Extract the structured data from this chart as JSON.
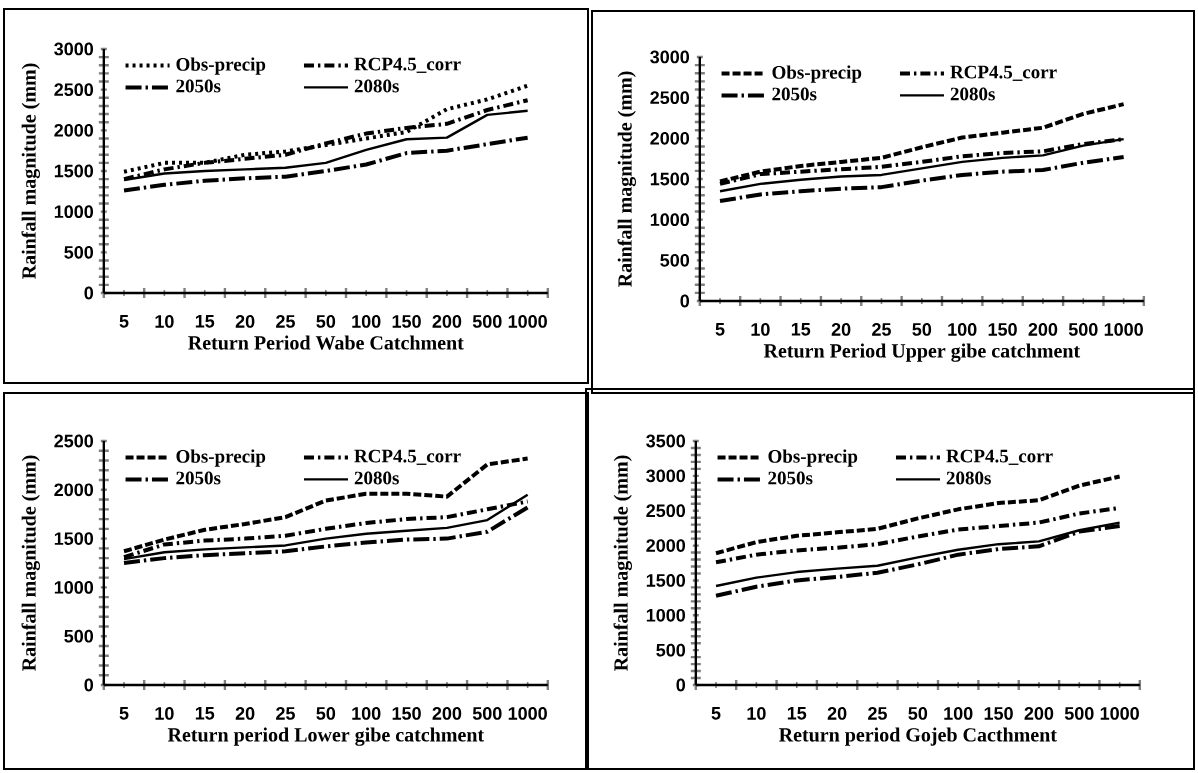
{
  "chart_data": [
    {
      "type": "line",
      "categories": [
        "5",
        "10",
        "15",
        "20",
        "25",
        "50",
        "100",
        "150",
        "200",
        "500",
        "1000"
      ],
      "xlabel": "Return Period Wabe  Catchment",
      "ylabel": "Rainfall magnitude (mm)",
      "ylim": [
        0,
        3000
      ],
      "yticks": [
        0,
        500,
        1000,
        1500,
        2000,
        2500,
        3000
      ],
      "legend": "top left",
      "grid": false,
      "series": [
        {
          "name": "Obs-precip",
          "color": "#000000",
          "line_style": "dotted",
          "values": [
            1490,
            1600,
            1600,
            1700,
            1740,
            1820,
            1900,
            1980,
            2260,
            2380,
            2550
          ]
        },
        {
          "name": "RCP4.5_corr",
          "color": "#000000",
          "line_style": "dashed",
          "values": [
            1400,
            1520,
            1600,
            1650,
            1700,
            1840,
            1960,
            2030,
            2080,
            2250,
            2370
          ]
        },
        {
          "name": "2050s",
          "color": "#000000",
          "line_style": "dashed",
          "values": [
            1260,
            1330,
            1380,
            1410,
            1430,
            1500,
            1580,
            1720,
            1750,
            1830,
            1910
          ]
        },
        {
          "name": "2080s",
          "color": "#000000",
          "line_style": "solid",
          "values": [
            1390,
            1470,
            1500,
            1520,
            1540,
            1600,
            1760,
            1890,
            1910,
            2190,
            2240
          ]
        }
      ]
    },
    {
      "type": "line",
      "categories": [
        "5",
        "10",
        "15",
        "20",
        "25",
        "50",
        "100",
        "150",
        "200",
        "500",
        "1000"
      ],
      "xlabel": "Return Period Upper gibe catchment",
      "ylabel": "Rainfall magnitude (mm)",
      "ylim": [
        0,
        3000
      ],
      "yticks": [
        0,
        500,
        1000,
        1500,
        2000,
        2500,
        3000
      ],
      "legend": "top left",
      "grid": false,
      "series": [
        {
          "name": "Obs-precip",
          "color": "#000000",
          "line_style": "dashed",
          "values": [
            1470,
            1590,
            1660,
            1710,
            1760,
            1890,
            2010,
            2070,
            2130,
            2300,
            2420
          ]
        },
        {
          "name": "RCP4.5_corr",
          "color": "#000000",
          "line_style": "dashed",
          "values": [
            1440,
            1560,
            1590,
            1620,
            1650,
            1710,
            1780,
            1820,
            1840,
            1930,
            1990
          ]
        },
        {
          "name": "2050s",
          "color": "#000000",
          "line_style": "dashed",
          "values": [
            1230,
            1310,
            1350,
            1380,
            1400,
            1480,
            1550,
            1590,
            1610,
            1700,
            1770
          ]
        },
        {
          "name": "2080s",
          "color": "#000000",
          "line_style": "solid",
          "values": [
            1350,
            1440,
            1490,
            1530,
            1550,
            1630,
            1710,
            1760,
            1790,
            1910,
            1990
          ]
        }
      ]
    },
    {
      "type": "line",
      "categories": [
        "5",
        "10",
        "15",
        "20",
        "25",
        "50",
        "100",
        "150",
        "200",
        "500",
        "1000"
      ],
      "xlabel": "Return period Lower gibe catchment",
      "ylabel": "Rainfall magnitude (mm)",
      "ylim": [
        0,
        2500
      ],
      "yticks": [
        0,
        500,
        1000,
        1500,
        2000,
        2500
      ],
      "legend": "top left",
      "grid": false,
      "series": [
        {
          "name": "Obs-precip",
          "color": "#000000",
          "line_style": "dashed",
          "values": [
            1370,
            1490,
            1590,
            1650,
            1720,
            1890,
            1960,
            1960,
            1930,
            2260,
            2320
          ]
        },
        {
          "name": "RCP4.5_corr",
          "color": "#000000",
          "line_style": "dashed",
          "values": [
            1310,
            1440,
            1480,
            1500,
            1530,
            1600,
            1660,
            1700,
            1720,
            1800,
            1880
          ]
        },
        {
          "name": "2050s",
          "color": "#000000",
          "line_style": "dashed",
          "values": [
            1250,
            1300,
            1330,
            1350,
            1370,
            1420,
            1460,
            1490,
            1500,
            1570,
            1820
          ]
        },
        {
          "name": "2080s",
          "color": "#000000",
          "line_style": "solid",
          "values": [
            1290,
            1360,
            1390,
            1410,
            1430,
            1500,
            1550,
            1580,
            1610,
            1690,
            1950
          ]
        }
      ]
    },
    {
      "type": "line",
      "categories": [
        "5",
        "10",
        "15",
        "20",
        "25",
        "50",
        "100",
        "150",
        "200",
        "500",
        "1000"
      ],
      "xlabel": "Return period Gojeb Cacthment",
      "ylabel": "Rainfall  magnitude (mm)",
      "ylim": [
        0,
        3500
      ],
      "yticks": [
        0,
        500,
        1000,
        1500,
        2000,
        2500,
        3000,
        3500
      ],
      "legend": "top left",
      "grid": false,
      "series": [
        {
          "name": "Obs-precip",
          "color": "#000000",
          "line_style": "dashed",
          "values": [
            1890,
            2050,
            2140,
            2190,
            2240,
            2390,
            2520,
            2610,
            2650,
            2860,
            2990
          ]
        },
        {
          "name": "RCP4.5_corr",
          "color": "#000000",
          "line_style": "dashed",
          "values": [
            1760,
            1870,
            1930,
            1970,
            2020,
            2130,
            2230,
            2280,
            2330,
            2460,
            2540
          ]
        },
        {
          "name": "2050s",
          "color": "#000000",
          "line_style": "dashed",
          "values": [
            1280,
            1410,
            1500,
            1550,
            1610,
            1730,
            1870,
            1950,
            1990,
            2200,
            2280
          ]
        },
        {
          "name": "2080s",
          "color": "#000000",
          "line_style": "solid",
          "values": [
            1420,
            1540,
            1620,
            1670,
            1710,
            1830,
            1940,
            2020,
            2060,
            2220,
            2330
          ]
        }
      ]
    }
  ]
}
